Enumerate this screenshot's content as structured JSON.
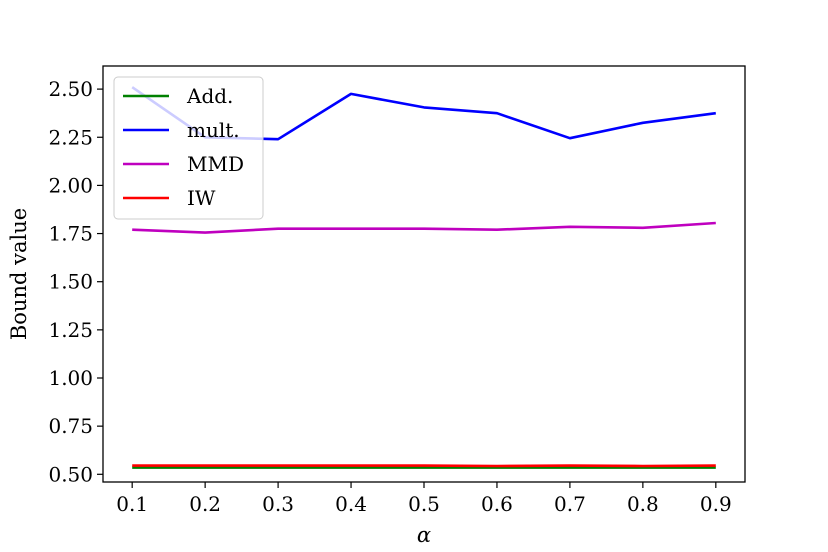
{
  "chart_data": {
    "type": "line",
    "title": "",
    "xlabel": "α",
    "ylabel": "Bound value",
    "x": [
      0.1,
      0.2,
      0.3,
      0.4,
      0.5,
      0.6,
      0.7,
      0.8,
      0.9
    ],
    "xticks": [
      "0.1",
      "0.2",
      "0.3",
      "0.4",
      "0.5",
      "0.6",
      "0.7",
      "0.8",
      "0.9"
    ],
    "yticks": [
      "0.50",
      "0.75",
      "1.00",
      "1.25",
      "1.50",
      "1.75",
      "2.00",
      "2.25",
      "2.50"
    ],
    "xlim": [
      0.06,
      0.94
    ],
    "ylim": [
      0.46,
      2.62
    ],
    "grid": false,
    "legend_position": "top-left",
    "series": [
      {
        "name": "Add.",
        "color": "#008000",
        "values": [
          0.535,
          0.535,
          0.535,
          0.535,
          0.535,
          0.535,
          0.535,
          0.535,
          0.535
        ]
      },
      {
        "name": "mult.",
        "color": "#0000ff",
        "values": [
          2.51,
          2.25,
          2.24,
          2.475,
          2.405,
          2.375,
          2.245,
          2.325,
          2.375
        ]
      },
      {
        "name": "MMD",
        "color": "#bf00bf",
        "values": [
          1.77,
          1.755,
          1.775,
          1.775,
          1.775,
          1.77,
          1.785,
          1.78,
          1.805
        ]
      },
      {
        "name": "IW",
        "color": "#ff0000",
        "values": [
          0.545,
          0.545,
          0.545,
          0.545,
          0.545,
          0.543,
          0.545,
          0.543,
          0.545
        ]
      }
    ]
  }
}
